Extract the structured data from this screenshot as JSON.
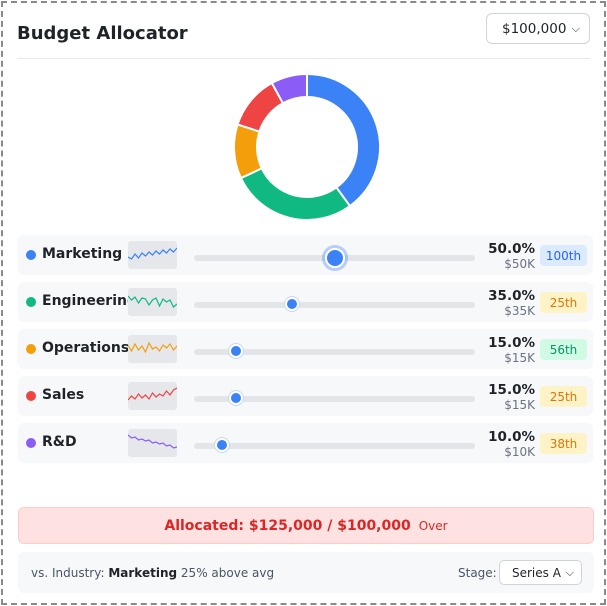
{
  "header": {
    "title": "Budget Allocator",
    "budget_selected": "$100,000"
  },
  "categories": [
    {
      "key": "marketing",
      "name": "Marketing",
      "percent": 50,
      "percent_label": "50.0%",
      "amount": "$50K",
      "percentile": "100th",
      "color": "#3b82f6",
      "badge_bg": "#dbeafe",
      "badge_fg": "#2563eb",
      "spark_color": "#3b82f6",
      "active": true
    },
    {
      "key": "engineering",
      "name": "Engineering",
      "percent": 35,
      "percent_label": "35.0%",
      "amount": "$35K",
      "percentile": "25th",
      "color": "#10b981",
      "badge_bg": "#fef3c7",
      "badge_fg": "#d97706",
      "spark_color": "#10b981",
      "active": false
    },
    {
      "key": "operations",
      "name": "Operations",
      "percent": 15,
      "percent_label": "15.0%",
      "amount": "$15K",
      "percentile": "56th",
      "color": "#f59e0b",
      "badge_bg": "#d1fae5",
      "badge_fg": "#059669",
      "spark_color": "#f59e0b",
      "active": false
    },
    {
      "key": "sales",
      "name": "Sales",
      "percent": 15,
      "percent_label": "15.0%",
      "amount": "$15K",
      "percentile": "25th",
      "color": "#ef4444",
      "badge_bg": "#fef3c7",
      "badge_fg": "#d97706",
      "spark_color": "#ef4444",
      "active": false
    },
    {
      "key": "rnd",
      "name": "R&D",
      "percent": 10,
      "percent_label": "10.0%",
      "amount": "$10K",
      "percentile": "38th",
      "color": "#8b5cf6",
      "badge_bg": "#fef3c7",
      "badge_fg": "#d97706",
      "spark_color": "#8b5cf6",
      "active": false
    }
  ],
  "allocation": {
    "text": "Allocated: $125,000 / $100,000",
    "status": "Over"
  },
  "footer": {
    "prefix": "vs. Industry:",
    "category": "Marketing",
    "suffix": "25% above avg",
    "stage_label": "Stage:",
    "stage_selected": "Series A"
  }
}
